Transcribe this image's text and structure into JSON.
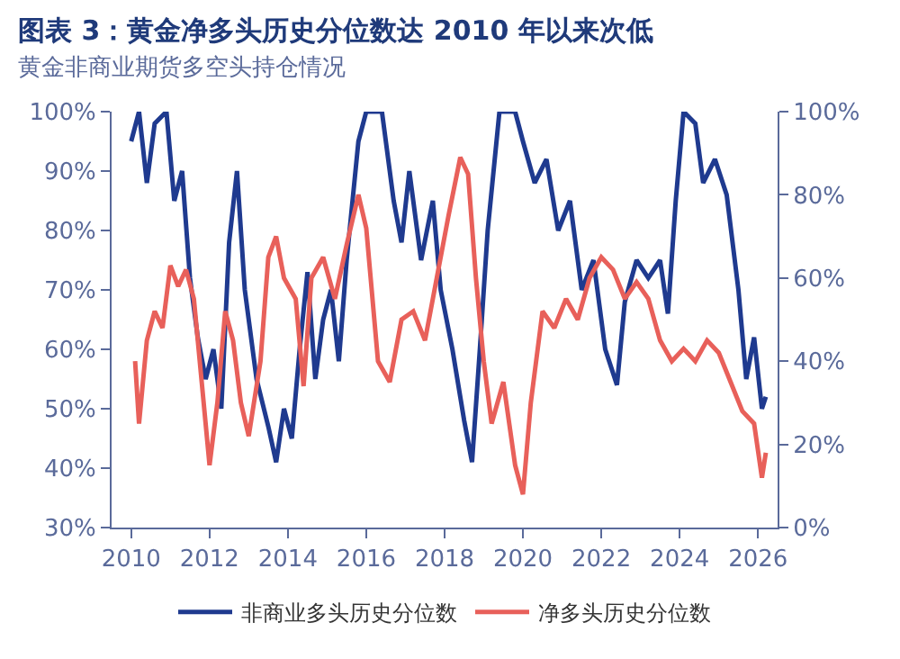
{
  "chart_data": {
    "type": "line",
    "title": "图表 3：黄金净多头历史分位数达 2010 年以来次低",
    "subtitle": "黄金非商业期货多空头持仓情况",
    "series": [
      {
        "name": "非商业多头历史分位数",
        "color": "#1f3a8f",
        "x": [
          2010.0,
          2010.2,
          2010.4,
          2010.6,
          2010.9,
          2011.1,
          2011.3,
          2011.5,
          2011.7,
          2011.9,
          2012.1,
          2012.3,
          2012.5,
          2012.7,
          2012.9,
          2013.2,
          2013.5,
          2013.7,
          2013.9,
          2014.1,
          2014.3,
          2014.5,
          2014.7,
          2014.9,
          2015.1,
          2015.3,
          2015.5,
          2015.8,
          2016.0,
          2016.4,
          2016.7,
          2016.9,
          2017.1,
          2017.4,
          2017.7,
          2017.9,
          2018.2,
          2018.5,
          2018.7,
          2018.9,
          2019.1,
          2019.4,
          2019.8,
          2020.0,
          2020.3,
          2020.6,
          2020.9,
          2021.2,
          2021.5,
          2021.8,
          2022.1,
          2022.4,
          2022.6,
          2022.9,
          2023.2,
          2023.5,
          2023.7,
          2023.9,
          2024.1,
          2024.4,
          2024.6,
          2024.9,
          2025.2,
          2025.5,
          2025.7,
          2025.9,
          2026.1,
          2026.2
        ],
        "values": [
          95,
          100,
          88,
          98,
          100,
          85,
          90,
          72,
          62,
          55,
          60,
          50,
          78,
          90,
          70,
          55,
          47,
          41,
          50,
          45,
          60,
          73,
          55,
          65,
          70,
          58,
          75,
          95,
          100,
          100,
          85,
          78,
          90,
          75,
          85,
          70,
          60,
          48,
          41,
          60,
          80,
          100,
          100,
          95,
          88,
          92,
          80,
          85,
          70,
          75,
          60,
          54,
          68,
          75,
          72,
          75,
          66,
          85,
          100,
          98,
          88,
          92,
          86,
          70,
          55,
          62,
          50,
          52
        ]
      },
      {
        "name": "净多头历史分位数",
        "color": "#e8605a",
        "axis": "y2",
        "x": [
          2010.1,
          2010.2,
          2010.4,
          2010.6,
          2010.8,
          2011.0,
          2011.2,
          2011.4,
          2011.6,
          2011.8,
          2012.0,
          2012.2,
          2012.4,
          2012.6,
          2012.8,
          2013.0,
          2013.3,
          2013.5,
          2013.7,
          2013.9,
          2014.2,
          2014.4,
          2014.6,
          2014.9,
          2015.2,
          2015.5,
          2015.8,
          2016.0,
          2016.3,
          2016.6,
          2016.9,
          2017.2,
          2017.5,
          2017.8,
          2018.1,
          2018.4,
          2018.6,
          2018.8,
          2019.0,
          2019.2,
          2019.5,
          2019.8,
          2020.0,
          2020.2,
          2020.5,
          2020.8,
          2021.1,
          2021.4,
          2021.7,
          2022.0,
          2022.3,
          2022.6,
          2022.9,
          2023.2,
          2023.5,
          2023.8,
          2024.1,
          2024.4,
          2024.7,
          2025.0,
          2025.3,
          2025.6,
          2025.9,
          2026.1,
          2026.2
        ],
        "values": [
          40,
          25,
          45,
          52,
          48,
          63,
          58,
          62,
          55,
          35,
          15,
          30,
          52,
          45,
          30,
          22,
          40,
          65,
          70,
          60,
          55,
          34,
          60,
          65,
          55,
          68,
          80,
          72,
          40,
          35,
          50,
          52,
          45,
          60,
          75,
          89,
          85,
          60,
          40,
          25,
          35,
          15,
          8,
          30,
          52,
          48,
          55,
          50,
          60,
          65,
          62,
          55,
          59,
          55,
          45,
          40,
          43,
          40,
          45,
          42,
          35,
          28,
          25,
          12,
          18
        ]
      }
    ],
    "xlim": [
      2009.5,
      2026.5
    ],
    "xticks": [
      2010,
      2012,
      2014,
      2016,
      2018,
      2020,
      2022,
      2024,
      2026
    ],
    "ylim": [
      30,
      100
    ],
    "yticks": [
      {
        "value": 30,
        "label": "30%"
      },
      {
        "value": 40,
        "label": "40%"
      },
      {
        "value": 50,
        "label": "50%"
      },
      {
        "value": 60,
        "label": "60%"
      },
      {
        "value": 70,
        "label": "70%"
      },
      {
        "value": 80,
        "label": "80%"
      },
      {
        "value": 90,
        "label": "90%"
      },
      {
        "value": 100,
        "label": "100%"
      }
    ],
    "y2lim": [
      0,
      100
    ],
    "y2ticks": [
      {
        "value": 0,
        "label": "0%"
      },
      {
        "value": 20,
        "label": "20%"
      },
      {
        "value": 40,
        "label": "40%"
      },
      {
        "value": 60,
        "label": "60%"
      },
      {
        "value": 80,
        "label": "80%"
      },
      {
        "value": 100,
        "label": "100%"
      }
    ],
    "legend": "bottom",
    "marker": "none",
    "line_style": "solid"
  }
}
